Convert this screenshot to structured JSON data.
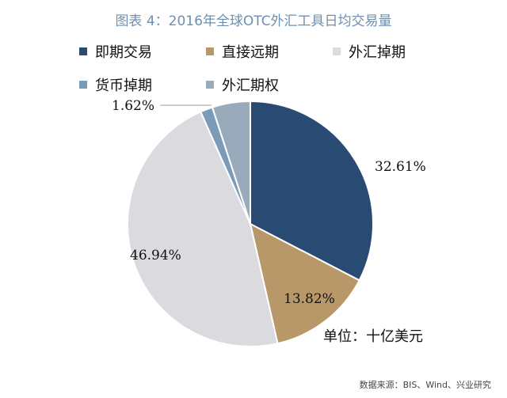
{
  "title": "图表 4：2016年全球OTC外汇工具日均交易量",
  "unit_note": "单位：十亿美元",
  "source": "数据来源：BIS、Wind、兴业研究",
  "chart_data": {
    "type": "pie",
    "title": "图表 4：2016年全球OTC外汇工具日均交易量",
    "legend_placement": "top",
    "slices": [
      {
        "name": "即期交易",
        "value": 32.61,
        "label": "32.61%",
        "color": "#284a73"
      },
      {
        "name": "直接远期",
        "value": 13.82,
        "label": "13.82%",
        "color": "#b89868"
      },
      {
        "name": "外汇掉期",
        "value": 46.94,
        "label": "46.94%",
        "color": "#dbdbdf"
      },
      {
        "name": "货币掉期",
        "value": 1.62,
        "label": "1.62%",
        "color": "#7b9cb8"
      },
      {
        "name": "外汇期权",
        "value": 5.01,
        "label": "",
        "color": "#99aabb"
      }
    ]
  }
}
